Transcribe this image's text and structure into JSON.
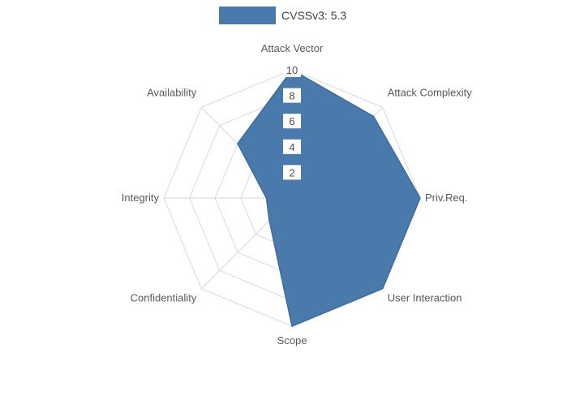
{
  "legend": {
    "label": "CVSSv3: 5.3"
  },
  "chart_data": {
    "type": "radar",
    "title": "",
    "categories": [
      "Attack Vector",
      "Attack Complexity",
      "Priv.Req.",
      "User Interaction",
      "Scope",
      "Confidentiality",
      "Integrity",
      "Availability"
    ],
    "series": [
      {
        "name": "CVSSv3: 5.3",
        "values": [
          10,
          9,
          10,
          10,
          10,
          2.5,
          2,
          6
        ]
      }
    ],
    "radial_ticks": [
      2,
      4,
      6,
      8,
      10
    ],
    "range": [
      0,
      10
    ],
    "grid": true,
    "grid_shape": "polygon",
    "legend_position": "top-center",
    "colors": {
      "fill": "#4a7aab",
      "stroke": "#3e6b99",
      "grid": "#d9d9d9",
      "category_label": "#595959",
      "tick_label": "#4d4d4d",
      "tick_bg": "#ffffff",
      "legend_text": "#3d3d3d"
    }
  }
}
